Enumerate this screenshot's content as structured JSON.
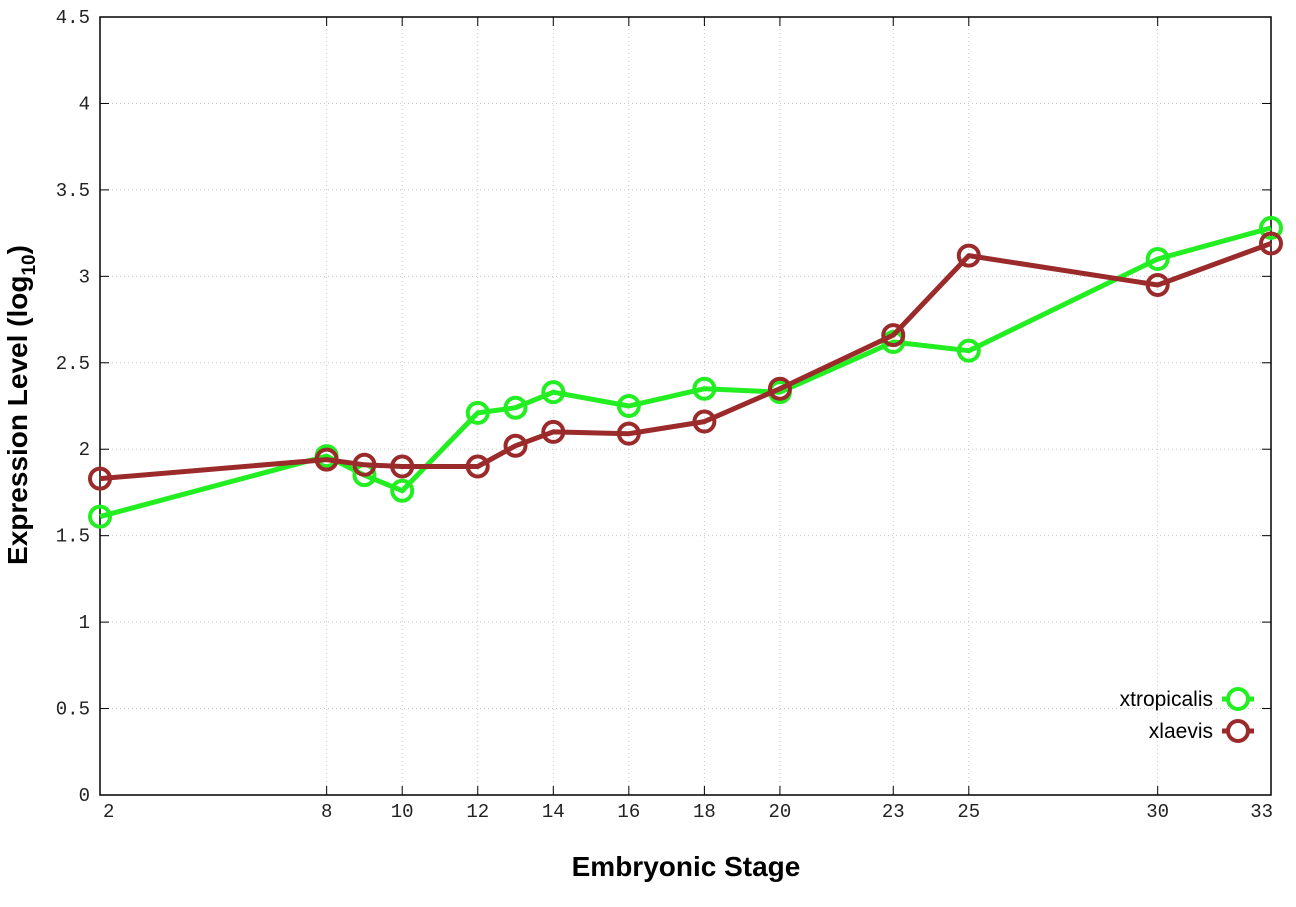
{
  "chart_data": {
    "type": "line",
    "title": "",
    "xlabel": "Embryonic Stage",
    "ylabel_main": "Expression Level (log",
    "ylabel_sub": "10",
    "ylabel_close": ")",
    "x_ticks": [
      "2",
      "8",
      "10",
      "12",
      "14",
      "16",
      "18",
      "20",
      "23",
      "25",
      "30",
      "33"
    ],
    "y_ticks": [
      "0",
      "0.5",
      "1",
      "1.5",
      "2",
      "2.5",
      "3",
      "3.5",
      "4",
      "4.5"
    ],
    "xlim": [
      2,
      33
    ],
    "ylim": [
      0,
      4.5
    ],
    "grid": true,
    "legend_position": "bottom-right",
    "x": [
      2,
      8,
      9,
      10,
      12,
      13,
      14,
      16,
      18,
      20,
      23,
      25,
      30,
      33
    ],
    "series": [
      {
        "name": "xtropicalis",
        "color": "#22ee22",
        "values": [
          1.61,
          1.96,
          1.85,
          1.76,
          2.21,
          2.24,
          2.33,
          2.25,
          2.35,
          2.33,
          2.62,
          2.57,
          3.1,
          3.28
        ]
      },
      {
        "name": "xlaevis",
        "color": "#9b2a2a",
        "values": [
          1.83,
          1.94,
          1.91,
          1.9,
          1.9,
          2.02,
          2.1,
          2.09,
          2.16,
          2.35,
          2.66,
          3.12,
          2.95,
          3.19
        ]
      }
    ]
  }
}
